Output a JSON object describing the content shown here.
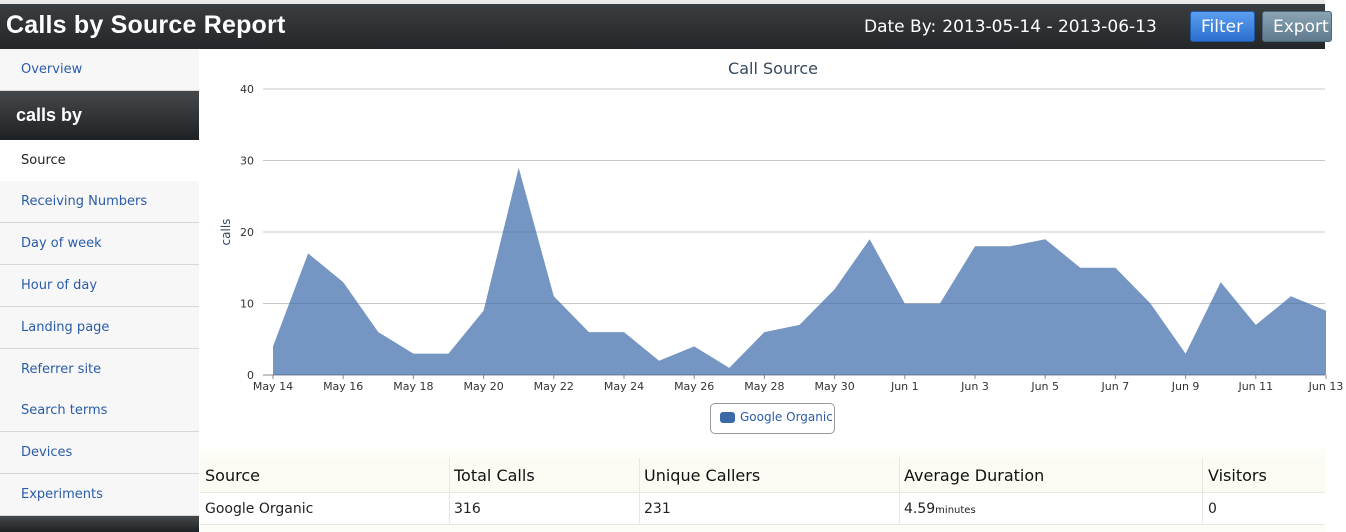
{
  "header": {
    "title": "Calls by Source Report",
    "date_label": "Date By:",
    "date_range": "2013-05-14 - 2013-06-13",
    "filter_label": "Filter",
    "export_label": "Export"
  },
  "sidebar": {
    "overview": "Overview",
    "section_title": "calls by",
    "items": [
      {
        "label": "Source",
        "active": true
      },
      {
        "label": "Receiving Numbers"
      },
      {
        "label": "Day of week"
      },
      {
        "label": "Hour of day"
      },
      {
        "label": "Landing page"
      },
      {
        "label": "Referrer site"
      },
      {
        "label": "Search terms"
      },
      {
        "label": "Devices"
      },
      {
        "label": "Experiments"
      }
    ]
  },
  "chart_data": {
    "type": "area",
    "title": "Call Source",
    "xlabel": "",
    "ylabel": "calls",
    "ylim": [
      0,
      40
    ],
    "yticks": [
      0,
      10,
      20,
      30,
      40
    ],
    "x": [
      "May 14",
      "May 15",
      "May 16",
      "May 17",
      "May 18",
      "May 19",
      "May 20",
      "May 21",
      "May 22",
      "May 23",
      "May 24",
      "May 25",
      "May 26",
      "May 27",
      "May 28",
      "May 29",
      "May 30",
      "May 31",
      "Jun 1",
      "Jun 2",
      "Jun 3",
      "Jun 4",
      "Jun 5",
      "Jun 6",
      "Jun 7",
      "Jun 8",
      "Jun 9",
      "Jun 10",
      "Jun 11",
      "Jun 12",
      "Jun 13"
    ],
    "xtick_labels": [
      "May 14",
      "May 16",
      "May 18",
      "May 20",
      "May 22",
      "May 24",
      "May 26",
      "May 28",
      "May 30",
      "Jun 1",
      "Jun 3",
      "Jun 5",
      "Jun 7",
      "Jun 9",
      "Jun 11",
      "Jun 13"
    ],
    "series": [
      {
        "name": "Google Organic",
        "color": "#3a69a8",
        "values": [
          4,
          17,
          13,
          6,
          3,
          3,
          9,
          29,
          11,
          6,
          6,
          2,
          4,
          1,
          6,
          7,
          12,
          19,
          10,
          10,
          18,
          18,
          19,
          15,
          15,
          10,
          3,
          13,
          7,
          11,
          9
        ]
      }
    ],
    "grid": true,
    "legend_position": "bottom-center"
  },
  "table": {
    "headers": [
      "Source",
      "Total Calls",
      "Unique Callers",
      "Average Duration",
      "Visitors"
    ],
    "rows": [
      {
        "source": "Google Organic",
        "total_calls": "316",
        "unique_callers": "231",
        "avg_duration": "4.59",
        "avg_duration_unit": "minutes",
        "visitors": "0"
      }
    ]
  },
  "colors": {
    "header_bg": "#2b2f31",
    "filter_button": "#3a82dd",
    "export_button": "#6f8a9c",
    "series": "#3a69a8",
    "link": "#2a5caa"
  }
}
